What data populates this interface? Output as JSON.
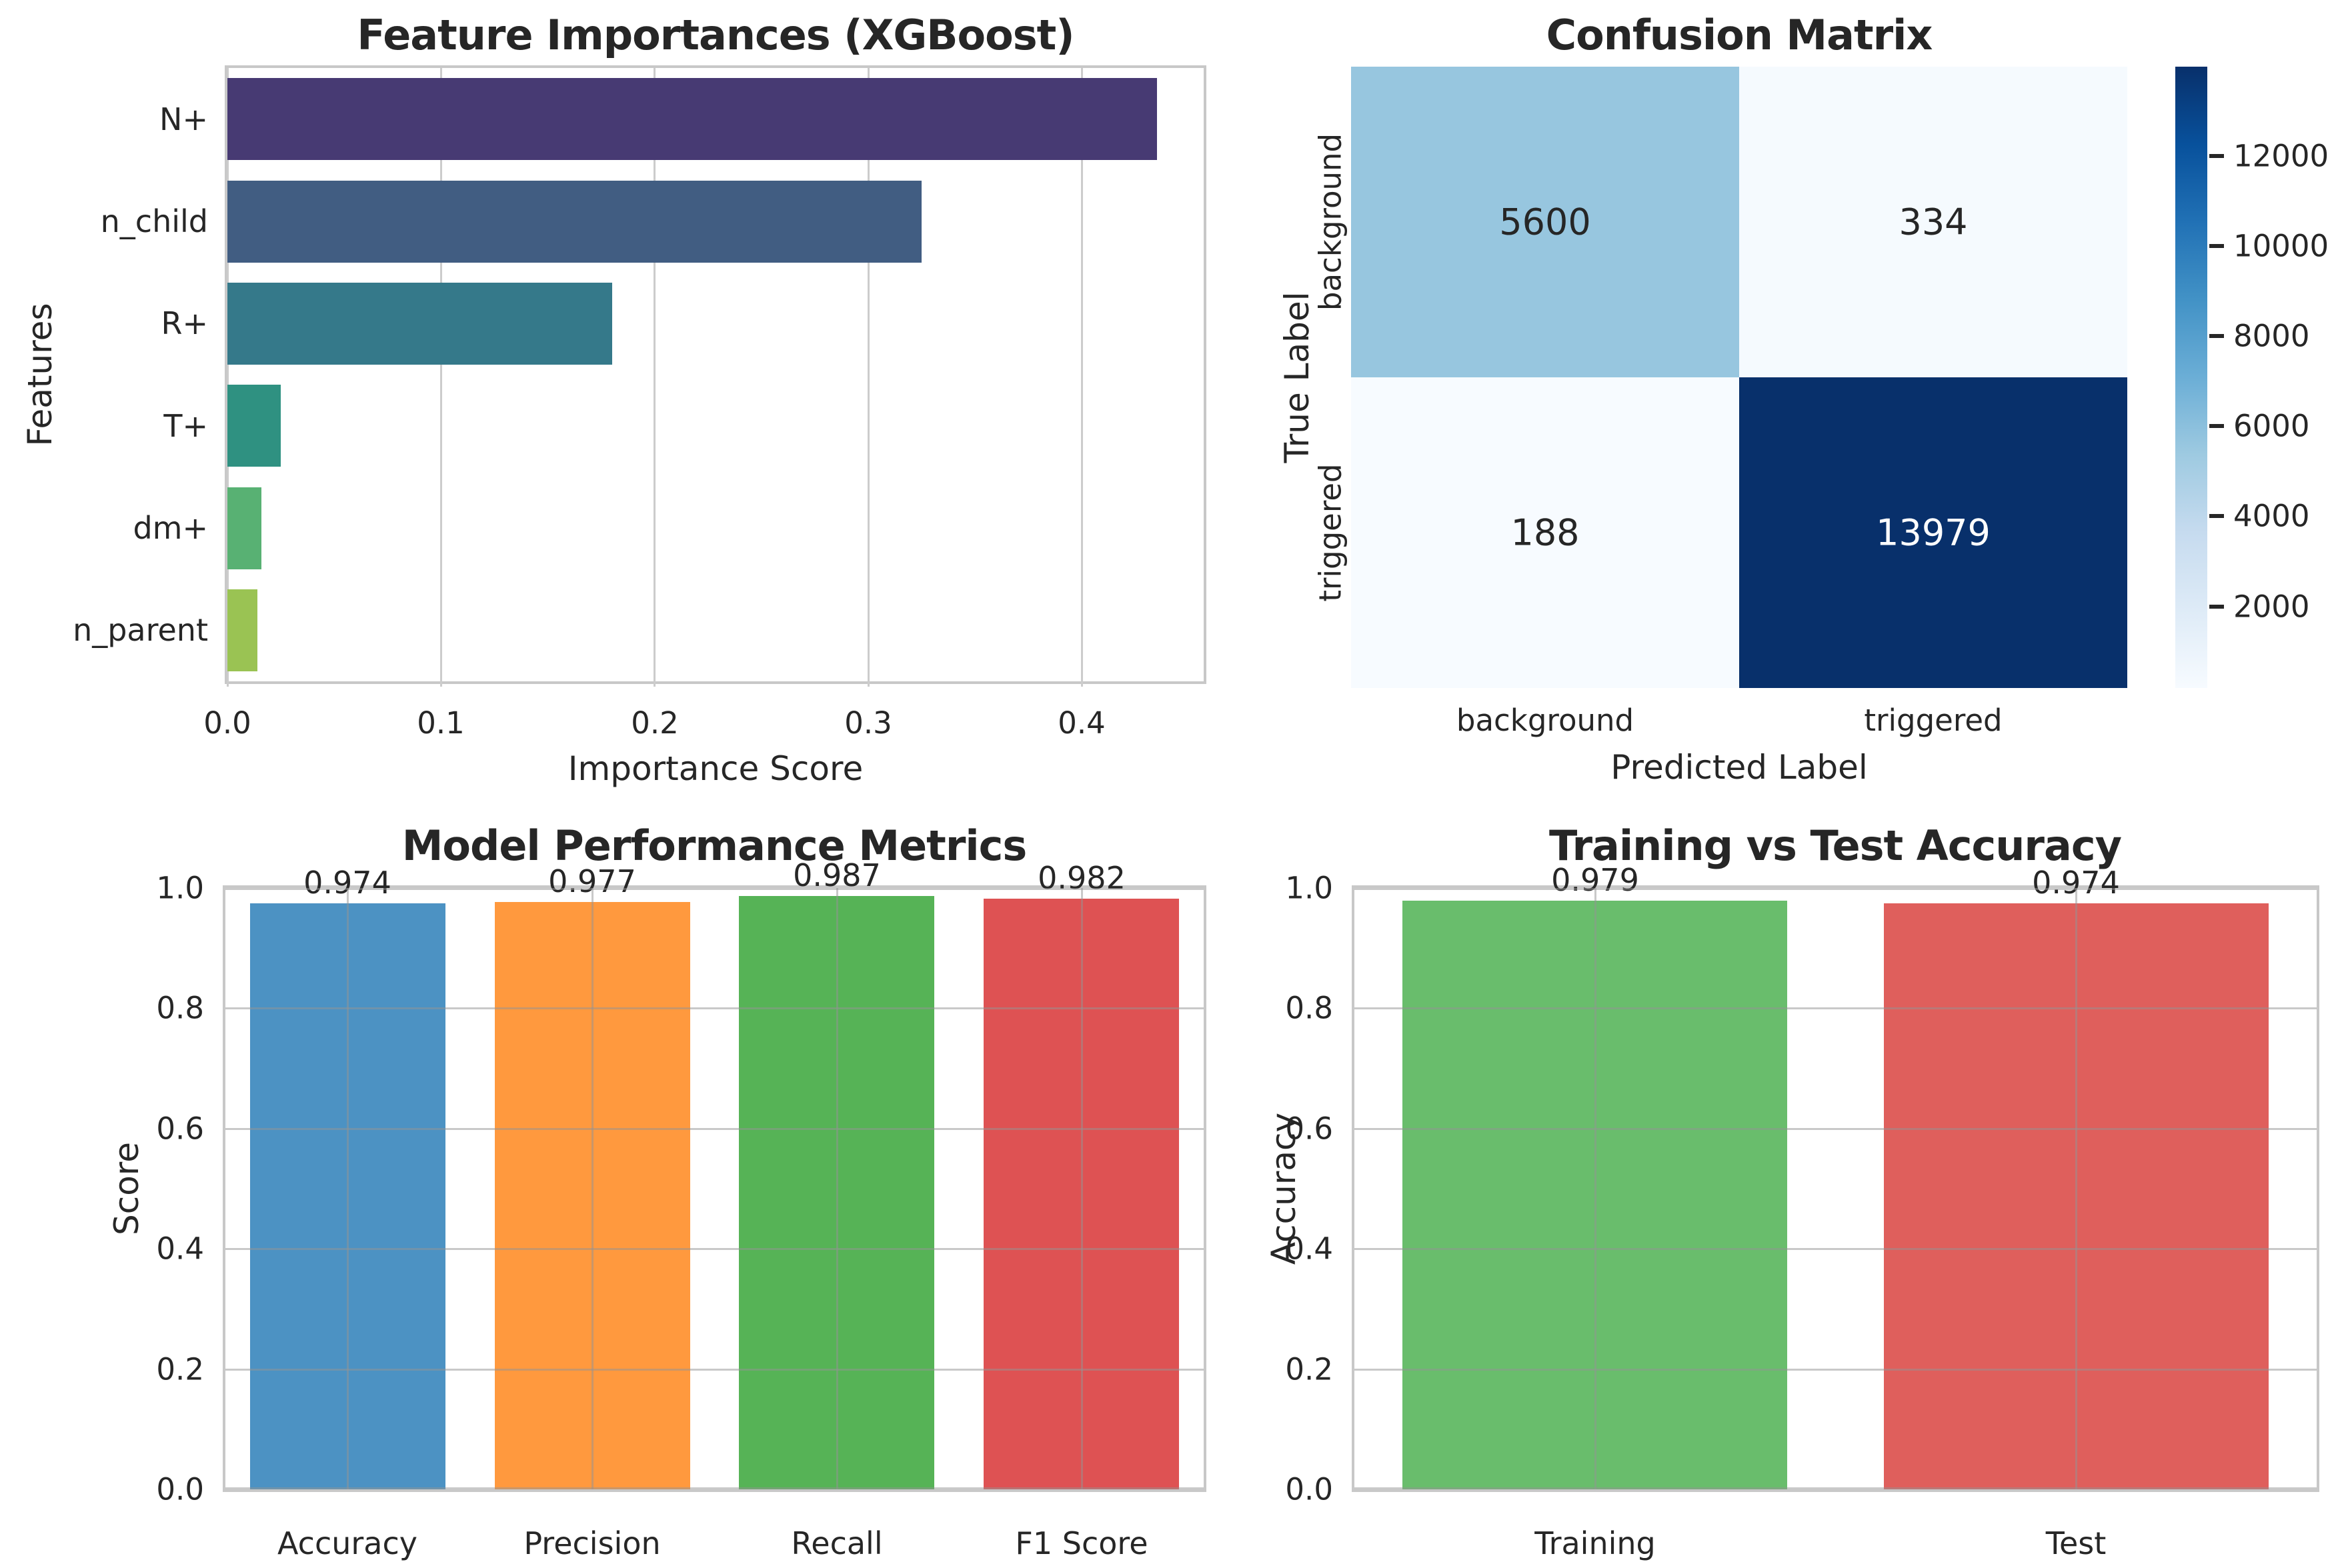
{
  "figure": {
    "background": "#ffffff",
    "text_color": "#262626"
  },
  "chart_data": [
    {
      "id": "feature-importances",
      "type": "bar",
      "orientation": "horizontal",
      "title": "Feature Importances (XGBoost)",
      "xlabel": "Importance Score",
      "ylabel": "Features",
      "categories": [
        "N+",
        "n_child",
        "R+",
        "T+",
        "dm+",
        "n_parent"
      ],
      "values": [
        0.435,
        0.325,
        0.18,
        0.025,
        0.016,
        0.014
      ],
      "bar_colors": [
        "#473a73",
        "#415d82",
        "#35798a",
        "#2f9181",
        "#58b173",
        "#9ac353"
      ],
      "x_tick_values": [
        0.0,
        0.1,
        0.2,
        0.3,
        0.4
      ],
      "x_tick_labels": [
        "0.0",
        "0.1",
        "0.2",
        "0.3",
        "0.4"
      ],
      "xlim": [
        0,
        0.457
      ],
      "grid": "vertical-behind-bars"
    },
    {
      "id": "confusion-matrix",
      "type": "heatmap",
      "title": "Confusion Matrix",
      "xlabel": "Predicted Label",
      "ylabel": "True Label",
      "x_categories": [
        "background",
        "triggered"
      ],
      "y_categories": [
        "background",
        "triggered"
      ],
      "matrix": [
        [
          5600,
          334
        ],
        [
          188,
          13979
        ]
      ],
      "cell_labels": [
        [
          "5600",
          "334"
        ],
        [
          "188",
          "13979"
        ]
      ],
      "cell_colors": [
        [
          "#97c6df",
          "#f5fafe"
        ],
        [
          "#f7fbff",
          "#08306b"
        ]
      ],
      "cell_text_colors": [
        [
          "#262626",
          "#262626"
        ],
        [
          "#262626",
          "#ffffff"
        ]
      ],
      "colorbar": {
        "min": 188,
        "max": 13979,
        "tick_values": [
          2000,
          4000,
          6000,
          8000,
          10000,
          12000
        ],
        "tick_labels": [
          "2000",
          "4000",
          "6000",
          "8000",
          "10000",
          "12000"
        ],
        "gradient_stops": [
          "#f7fbff",
          "#deebf7",
          "#c6dbef",
          "#9ecae1",
          "#6baed6",
          "#4292c6",
          "#2171b5",
          "#08519c",
          "#08306b"
        ]
      }
    },
    {
      "id": "performance-metrics",
      "type": "bar",
      "orientation": "vertical",
      "title": "Model Performance Metrics",
      "xlabel": "",
      "ylabel": "Score",
      "categories": [
        "Accuracy",
        "Precision",
        "Recall",
        "F1 Score"
      ],
      "values": [
        0.974,
        0.977,
        0.987,
        0.982
      ],
      "value_labels": [
        "0.974",
        "0.977",
        "0.987",
        "0.982"
      ],
      "bar_colors": [
        "#4c92c3",
        "#ff993e",
        "#56b356",
        "#de5253"
      ],
      "y_tick_values": [
        0.0,
        0.2,
        0.4,
        0.6,
        0.8,
        1.0
      ],
      "y_tick_labels": [
        "0.0",
        "0.2",
        "0.4",
        "0.6",
        "0.8",
        "1.0"
      ],
      "ylim": [
        0,
        1.0
      ],
      "grid": "both-through-bars"
    },
    {
      "id": "train-test-accuracy",
      "type": "bar",
      "orientation": "vertical",
      "title": "Training vs Test Accuracy",
      "xlabel": "",
      "ylabel": "Accuracy",
      "categories": [
        "Training",
        "Test"
      ],
      "values": [
        0.979,
        0.974
      ],
      "value_labels": [
        "0.979",
        "0.974"
      ],
      "bar_colors": [
        "#69bd6c",
        "#df5f5c"
      ],
      "y_tick_values": [
        0.0,
        0.2,
        0.4,
        0.6,
        0.8,
        1.0
      ],
      "y_tick_labels": [
        "0.0",
        "0.2",
        "0.4",
        "0.6",
        "0.8",
        "1.0"
      ],
      "ylim": [
        0,
        1.0
      ],
      "grid": "both-through-bars"
    }
  ]
}
